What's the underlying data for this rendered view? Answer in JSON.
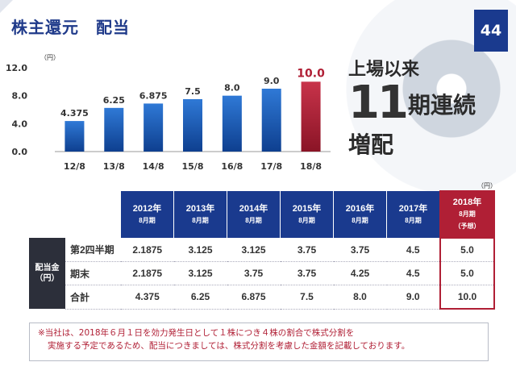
{
  "title": "株主還元　配当",
  "page_number": "44",
  "headline": {
    "line1": "上場以来",
    "number": "11",
    "line2": "期連続",
    "line3": "増配"
  },
  "chart_data": {
    "type": "bar",
    "unit": "（円）",
    "categories": [
      "12/8",
      "13/8",
      "14/8",
      "15/8",
      "16/8",
      "17/8",
      "18/8"
    ],
    "values": [
      4.375,
      6.25,
      6.875,
      7.5,
      8.0,
      9.0,
      10.0
    ],
    "value_labels": [
      "4.375",
      "6.25",
      "6.875",
      "7.5",
      "8.0",
      "9.0",
      "10.0"
    ],
    "yticks": [
      "0.0",
      "4.0",
      "8.0",
      "12.0"
    ],
    "ylim": [
      0,
      12
    ],
    "highlight_index": 6,
    "colors": {
      "bar": "#1d5bbf",
      "highlight": "#b01f35"
    }
  },
  "table": {
    "unit": "（円）",
    "row_group_label": "配当金\n（円）",
    "columns": [
      {
        "year": "2012年",
        "month": "8月期",
        "note": ""
      },
      {
        "year": "2013年",
        "month": "8月期",
        "note": ""
      },
      {
        "year": "2014年",
        "month": "8月期",
        "note": ""
      },
      {
        "year": "2015年",
        "month": "8月期",
        "note": ""
      },
      {
        "year": "2016年",
        "month": "8月期",
        "note": ""
      },
      {
        "year": "2017年",
        "month": "8月期",
        "note": ""
      },
      {
        "year": "2018年",
        "month": "8月期",
        "note": "（予想）"
      }
    ],
    "rows": [
      {
        "label": "第2四半期",
        "values": [
          "2.1875",
          "3.125",
          "3.125",
          "3.75",
          "3.75",
          "4.5",
          "5.0"
        ]
      },
      {
        "label": "期末",
        "values": [
          "2.1875",
          "3.125",
          "3.75",
          "3.75",
          "4.25",
          "4.5",
          "5.0"
        ]
      },
      {
        "label": "合計",
        "values": [
          "4.375",
          "6.25",
          "6.875",
          "7.5",
          "8.0",
          "9.0",
          "10.0"
        ]
      }
    ]
  },
  "footnote": {
    "line1": "※当社は、2018年６月１日を効力発生日として１株につき４株の割合で株式分割を",
    "line2": "実施する予定であるため、配当につきましては、株式分割を考慮した金額を記載しております。"
  }
}
